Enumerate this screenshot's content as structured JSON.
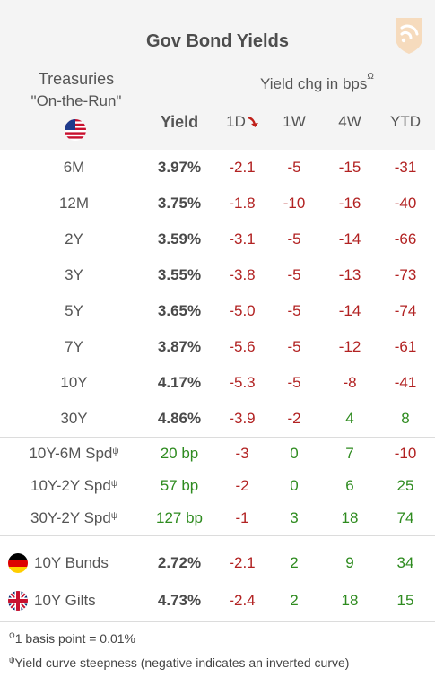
{
  "title": "Gov Bond Yields",
  "logo_icon": "brand-logo-icon",
  "header": {
    "treasuries_line1": "Treasuries",
    "treasuries_line2": "\"On-the-Run\"",
    "yield_chg_label": "Yield chg in bps",
    "yield_chg_sup": "Ω",
    "col_yield": "Yield",
    "col_1d": "1D",
    "col_1w": "1W",
    "col_4w": "4W",
    "col_ytd": "YTD"
  },
  "treasuries": [
    {
      "tenor": "6M",
      "yield": "3.97%",
      "d1": "-2.1",
      "w1": "-5",
      "w4": "-15",
      "ytd": "-31"
    },
    {
      "tenor": "12M",
      "yield": "3.75%",
      "d1": "-1.8",
      "w1": "-10",
      "w4": "-16",
      "ytd": "-40"
    },
    {
      "tenor": "2Y",
      "yield": "3.59%",
      "d1": "-3.1",
      "w1": "-5",
      "w4": "-14",
      "ytd": "-66"
    },
    {
      "tenor": "3Y",
      "yield": "3.55%",
      "d1": "-3.8",
      "w1": "-5",
      "w4": "-13",
      "ytd": "-73"
    },
    {
      "tenor": "5Y",
      "yield": "3.65%",
      "d1": "-5.0",
      "w1": "-5",
      "w4": "-14",
      "ytd": "-74"
    },
    {
      "tenor": "7Y",
      "yield": "3.87%",
      "d1": "-5.6",
      "w1": "-5",
      "w4": "-12",
      "ytd": "-61"
    },
    {
      "tenor": "10Y",
      "yield": "4.17%",
      "d1": "-5.3",
      "w1": "-5",
      "w4": "-8",
      "ytd": "-41"
    },
    {
      "tenor": "30Y",
      "yield": "4.86%",
      "d1": "-3.9",
      "w1": "-2",
      "w4": "4",
      "ytd": "8"
    }
  ],
  "spreads": [
    {
      "name": "10Y-6M Spd",
      "sup": "ψ",
      "value": "20 bp",
      "d1": "-3",
      "w1": "0",
      "w4": "7",
      "ytd": "-10"
    },
    {
      "name": "10Y-2Y Spd",
      "sup": "ψ",
      "value": "57 bp",
      "d1": "-2",
      "w1": "0",
      "w4": "6",
      "ytd": "25"
    },
    {
      "name": "30Y-2Y Spd",
      "sup": "ψ",
      "value": "127 bp",
      "d1": "-1",
      "w1": "3",
      "w4": "18",
      "ytd": "74"
    }
  ],
  "international": [
    {
      "name": "10Y Bunds",
      "flag": "germany-flag-icon",
      "yield": "2.72%",
      "d1": "-2.1",
      "w1": "2",
      "w4": "9",
      "ytd": "34"
    },
    {
      "name": "10Y Gilts",
      "flag": "uk-flag-icon",
      "yield": "4.73%",
      "d1": "-2.4",
      "w1": "2",
      "w4": "18",
      "ytd": "15"
    }
  ],
  "footnotes": {
    "f1_sup": "Ω",
    "f1": "1 basis point = 0.01%",
    "f2_sup": "ψ",
    "f2": "Yield curve steepness (negative indicates an inverted curve)"
  },
  "colors": {
    "negative": "#b22222",
    "positive": "#2e8b1f",
    "header_bg": "#f4f4f4",
    "logo": "#f2c08a",
    "sort_arrow": "#c0201a"
  }
}
